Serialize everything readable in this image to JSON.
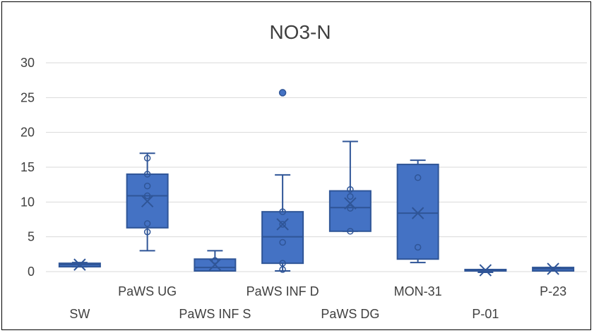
{
  "chart_data": {
    "type": "box",
    "title": "NO3-N",
    "xlabel": "",
    "ylabel": "",
    "ylim": [
      0,
      30
    ],
    "yticks": [
      0,
      5,
      10,
      15,
      20,
      25,
      30
    ],
    "grid": true,
    "legend": "none",
    "color": "#4472c4",
    "edge_color": "#2f5597",
    "categories": [
      "SW",
      "PaWS UG",
      "PaWS INF S",
      "PaWS INF D",
      "PaWS DG",
      "MON-31",
      "P-01",
      "P-23"
    ],
    "boxes": [
      {
        "name": "SW",
        "min": 0.7,
        "q1": 0.7,
        "median": 1.0,
        "q3": 1.2,
        "max": 1.3,
        "mean": 1.0,
        "points": [],
        "outliers": []
      },
      {
        "name": "PaWS UG",
        "min": 3.0,
        "q1": 6.3,
        "median": 10.9,
        "q3": 14.0,
        "max": 17.0,
        "mean": 10.1,
        "points": [
          5.7,
          6.9,
          10.9,
          12.3,
          14.0,
          16.3
        ],
        "outliers": []
      },
      {
        "name": "PaWS INF S",
        "min": 0.1,
        "q1": 0.1,
        "median": 0.6,
        "q3": 1.8,
        "max": 3.0,
        "mean": 1.0,
        "points": [
          1.6
        ],
        "outliers": []
      },
      {
        "name": "PaWS INF D",
        "min": 0.1,
        "q1": 1.2,
        "median": 5.0,
        "q3": 8.6,
        "max": 13.9,
        "mean": 6.8,
        "points": [
          0.3,
          1.2,
          4.2,
          6.8,
          8.6
        ],
        "outliers": [
          25.7
        ]
      },
      {
        "name": "PaWS DG",
        "min": 5.8,
        "q1": 5.8,
        "median": 9.2,
        "q3": 11.6,
        "max": 18.7,
        "mean": 9.8,
        "points": [
          5.8,
          9.1,
          10.8,
          11.8
        ],
        "outliers": []
      },
      {
        "name": "MON-31",
        "min": 1.3,
        "q1": 1.8,
        "median": 8.4,
        "q3": 15.4,
        "max": 16.0,
        "mean": 8.4,
        "points": [
          3.5,
          13.5
        ],
        "outliers": []
      },
      {
        "name": "P-01",
        "min": -0.1,
        "q1": 0.1,
        "median": 0.2,
        "q3": 0.3,
        "max": 0.3,
        "mean": 0.2,
        "points": [],
        "outliers": []
      },
      {
        "name": "P-23",
        "min": 0.1,
        "q1": 0.1,
        "median": 0.4,
        "q3": 0.6,
        "max": 0.6,
        "mean": 0.4,
        "points": [],
        "outliers": []
      }
    ]
  }
}
